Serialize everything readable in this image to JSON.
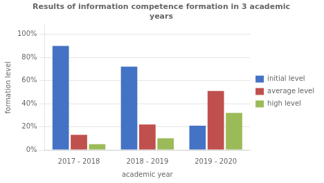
{
  "chart_data": {
    "type": "bar",
    "title": "Results of information competence formation in 3 academic\nyears",
    "x_label": "academic year",
    "y_label": "formation level",
    "categories": [
      "2017 - 2018",
      "2018 - 2019",
      "2019 - 2020"
    ],
    "series": [
      {
        "name": "initial level",
        "color": "#4472C4",
        "values": [
          90,
          72,
          21
        ]
      },
      {
        "name": "average level",
        "color": "#C0504D",
        "values": [
          13,
          22,
          51
        ]
      },
      {
        "name": "high level",
        "color": "#9BBB59",
        "values": [
          5,
          10,
          32
        ]
      }
    ],
    "ylim": [
      0,
      108
    ],
    "yticks": [
      {
        "value": 0,
        "label": "0%"
      },
      {
        "value": 20,
        "label": "20%"
      },
      {
        "value": 40,
        "label": "40%"
      },
      {
        "value": 60,
        "label": "60%"
      },
      {
        "value": 80,
        "label": "80%"
      },
      {
        "value": 100,
        "label": "100%"
      }
    ],
    "grid": true,
    "legend": "right"
  }
}
